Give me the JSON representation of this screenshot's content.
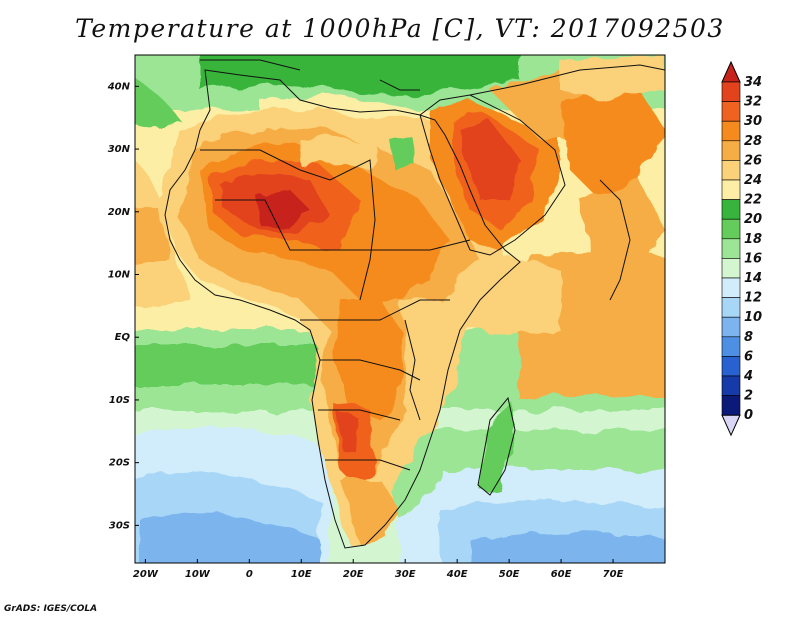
{
  "title": "Temperature at 1000hPa [C], VT: 2017092503",
  "credit": "GrADS: IGES/COLA",
  "map": {
    "lat_labels": [
      "40N",
      "30N",
      "20N",
      "10N",
      "EQ",
      "10S",
      "20S",
      "30S"
    ],
    "lat_values": [
      40,
      30,
      20,
      10,
      0,
      -10,
      -20,
      -30
    ],
    "lon_labels": [
      "20W",
      "10W",
      "0",
      "10E",
      "20E",
      "30E",
      "40E",
      "50E",
      "60E",
      "70E"
    ],
    "lon_values": [
      -20,
      -10,
      0,
      10,
      20,
      30,
      40,
      50,
      60,
      70
    ],
    "lon_range": [
      -22,
      80
    ],
    "lat_range": [
      -36,
      45
    ]
  },
  "colorbar": {
    "labels": [
      "34",
      "32",
      "30",
      "28",
      "26",
      "24",
      "22",
      "20",
      "18",
      "16",
      "14",
      "12",
      "10",
      "8",
      "6",
      "4",
      "2",
      "0"
    ],
    "colors": [
      "#c7221b",
      "#e2431d",
      "#f0621f",
      "#f58b1e",
      "#f7ad45",
      "#fbd27a",
      "#fcefa5",
      "#37b43b",
      "#63cc5a",
      "#9be595",
      "#d3f6d1",
      "#d1ecfb",
      "#a8d6f6",
      "#7bb4ee",
      "#4d8fe3",
      "#2862d0",
      "#163aa8",
      "#0b1a78",
      "#d9d6f6"
    ]
  }
}
